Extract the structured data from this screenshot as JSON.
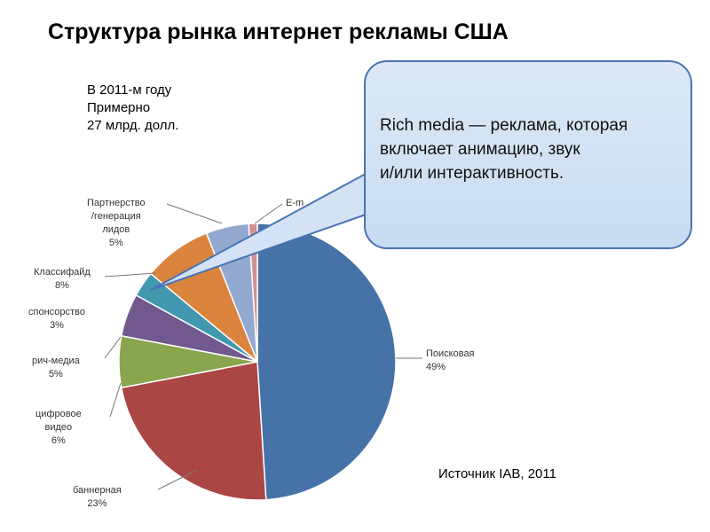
{
  "title": "Структура рынка интернет  рекламы США",
  "note": {
    "line1": "В 2011-м году",
    "line2": "Примерно",
    "line3": "27 млрд. долл."
  },
  "source": "Источник IAB, 2011",
  "callout": {
    "line1": "Rich media — реклама, которая",
    "line2": "включает анимацию, звук",
    "line3": "и/или интерактивность."
  },
  "colors": {
    "search": "#4572a7",
    "banner": "#aa4643",
    "video": "#89a54e",
    "richmedia": "#71588f",
    "sponsorship": "#4198af",
    "classifieds": "#db843d",
    "leadgen": "#93a9cf",
    "email": "#d19392"
  },
  "chart_data": {
    "type": "pie",
    "title": "",
    "slices": [
      {
        "key": "search",
        "lines": [
          "Поисковая",
          "49%"
        ],
        "value": 49
      },
      {
        "key": "banner",
        "lines": [
          "баннерная",
          "23%"
        ],
        "value": 23
      },
      {
        "key": "video",
        "lines": [
          "цифровое",
          "видео",
          "6%"
        ],
        "value": 6
      },
      {
        "key": "richmedia",
        "lines": [
          "рич-медиа",
          "5%"
        ],
        "value": 5
      },
      {
        "key": "sponsorship",
        "lines": [
          "спонсорство",
          "3%"
        ],
        "value": 3
      },
      {
        "key": "classifieds",
        "lines": [
          "Классифайд",
          "8%"
        ],
        "value": 8
      },
      {
        "key": "leadgen",
        "lines": [
          "Партнерство",
          "/генерация",
          "лидов",
          "5%"
        ],
        "value": 5
      },
      {
        "key": "email",
        "lines": [
          "E-m"
        ],
        "value": 1
      }
    ]
  }
}
